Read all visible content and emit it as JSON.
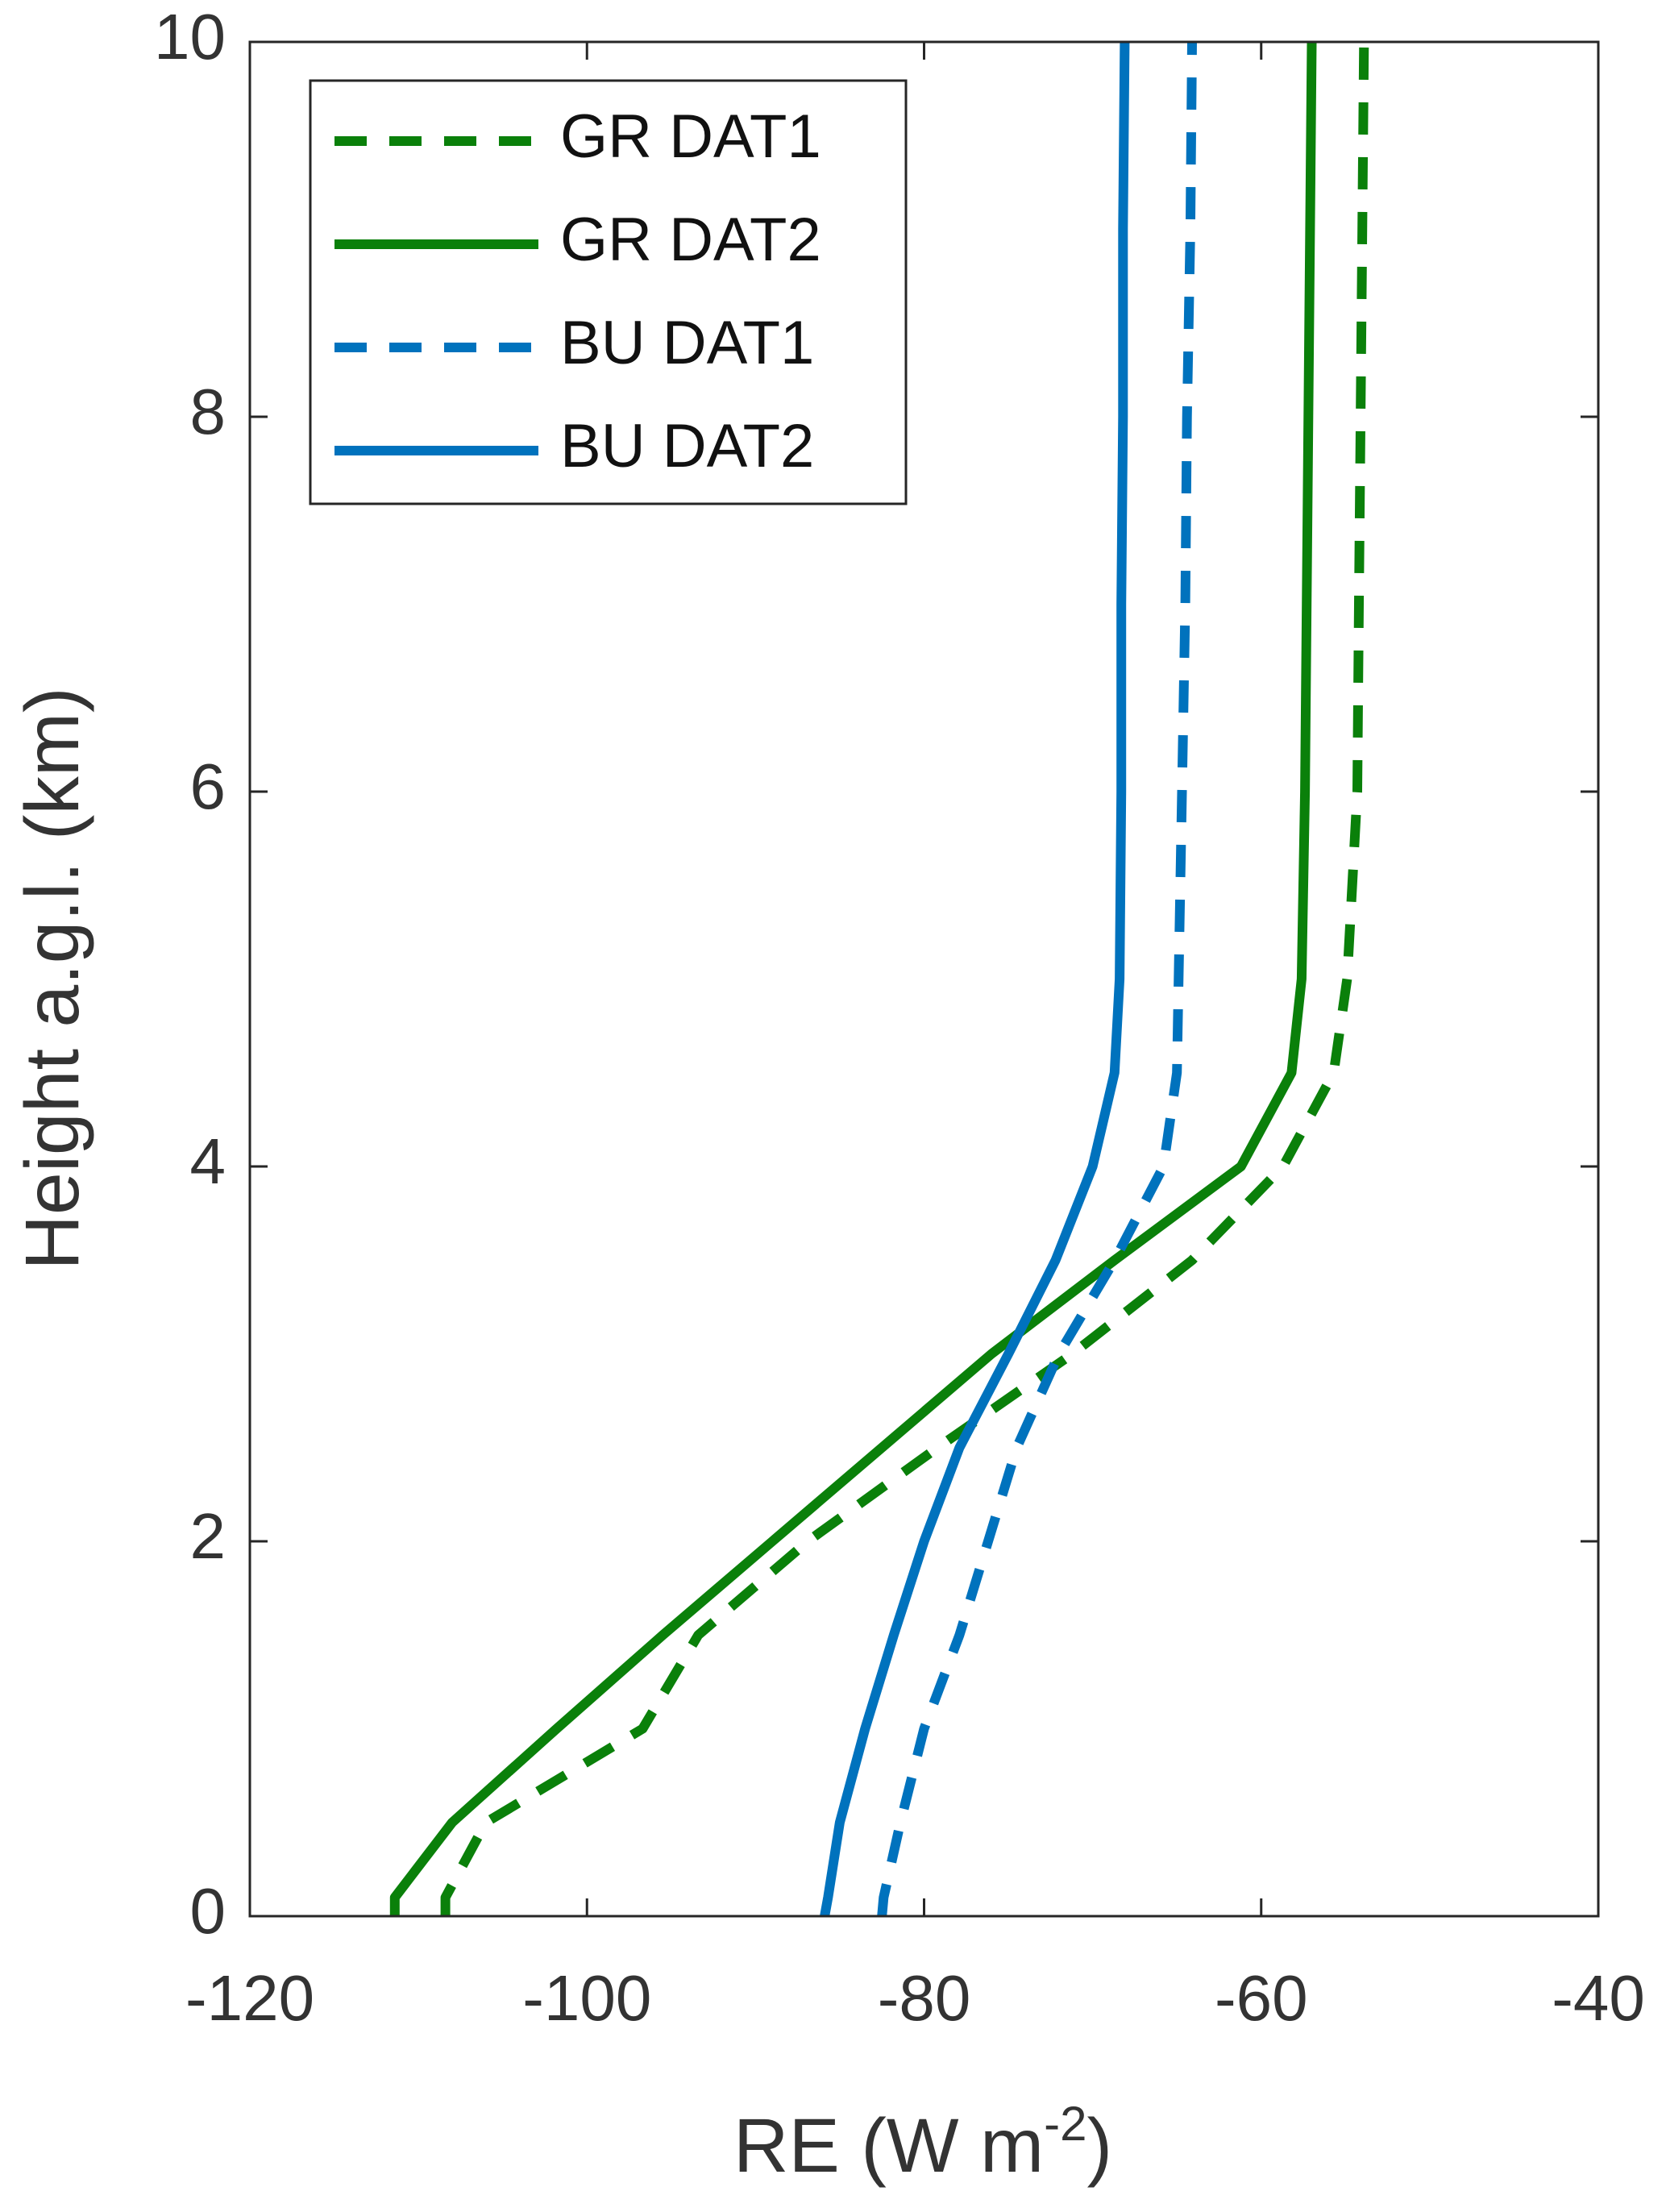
{
  "chart_data": {
    "type": "line",
    "xlabel": "RE (W m",
    "xlabel_sup": "-2",
    "xlabel_end": ")",
    "ylabel": "Height a.g.l. (km)",
    "y": [
      0,
      0.1,
      0.5,
      1,
      1.5,
      2,
      2.5,
      3,
      3.5,
      4,
      4.5,
      5,
      6,
      7,
      8,
      9,
      10
    ],
    "series": [
      {
        "name": "GR DAT1",
        "color": "#0a800a",
        "dashed": true,
        "values": [
          -108.4,
          -108.4,
          -106.0,
          -96.7,
          -93.4,
          -86.9,
          -79.2,
          -71.2,
          -64.1,
          -58.7,
          -55.7,
          -54.9,
          -54.3,
          -54.2,
          -54.1,
          -54.0,
          -53.9
        ]
      },
      {
        "name": "GR DAT2",
        "color": "#0a800a",
        "dashed": false,
        "values": [
          -111.4,
          -111.4,
          -108.0,
          -101.8,
          -95.5,
          -89.0,
          -82.5,
          -76.0,
          -68.7,
          -61.2,
          -58.2,
          -57.6,
          -57.4,
          -57.3,
          -57.2,
          -57.1,
          -57.0
        ]
      },
      {
        "name": "BU DAT1",
        "color": "#0072bd",
        "dashed": true,
        "values": [
          -82.5,
          -82.4,
          -81.4,
          -80.0,
          -77.9,
          -76.2,
          -74.5,
          -72.0,
          -68.7,
          -65.8,
          -65.0,
          -64.9,
          -64.7,
          -64.5,
          -64.4,
          -64.2,
          -64.1
        ]
      },
      {
        "name": "BU DAT2",
        "color": "#0072bd",
        "dashed": false,
        "values": [
          -85.9,
          -85.7,
          -85.0,
          -83.5,
          -81.8,
          -80.0,
          -77.9,
          -75.0,
          -72.2,
          -70.0,
          -68.7,
          -68.4,
          -68.3,
          -68.3,
          -68.2,
          -68.2,
          -68.1
        ]
      }
    ],
    "xlim": [
      -120,
      -40
    ],
    "xticks": [
      -120,
      -100,
      -80,
      -60,
      -40
    ],
    "ylim": [
      0,
      10
    ],
    "yticks": [
      0,
      2,
      4,
      6,
      8,
      10
    ],
    "grid": false,
    "legend": "upper left"
  }
}
